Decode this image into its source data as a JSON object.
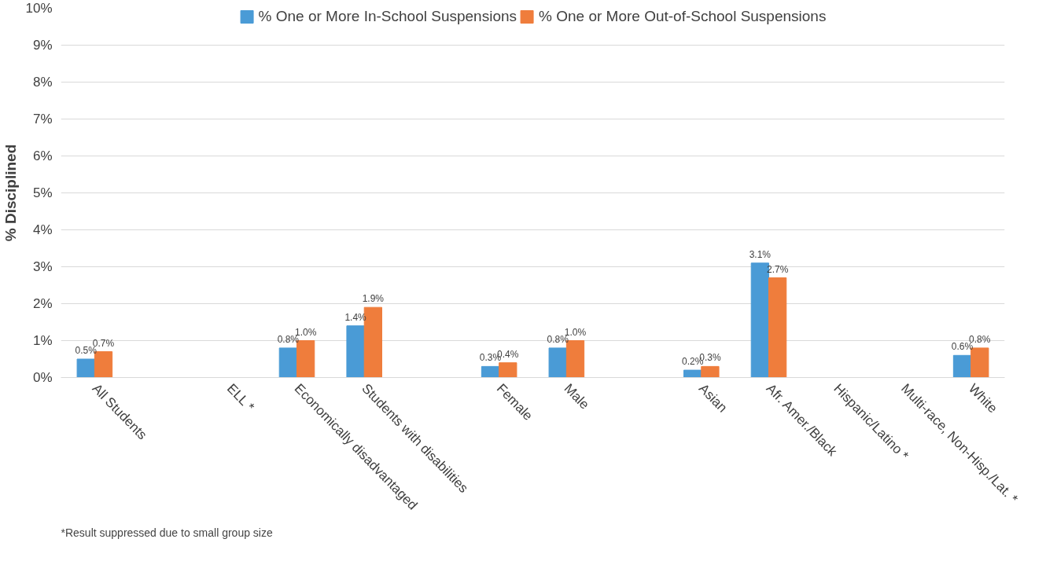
{
  "chart_data": {
    "type": "bar",
    "ylabel": "% Disciplined",
    "categories": [
      "All Students",
      null,
      "ELL *",
      "Economically disadvantaged",
      "Students with disabilities",
      null,
      "Female",
      "Male",
      null,
      "Asian",
      "Afr. Amer./Black",
      "Hispanic/Latino *",
      "Multi-race, Non-Hisp./Lat. *",
      "White"
    ],
    "series": [
      {
        "name": "% One or More In-School Suspensions",
        "color": "#4a9bd6",
        "values": [
          0.5,
          null,
          null,
          0.8,
          1.4,
          null,
          0.3,
          0.8,
          null,
          0.2,
          3.1,
          null,
          null,
          0.6
        ],
        "value_labels": [
          "0.5%",
          null,
          null,
          "0.8%",
          "1.4%",
          null,
          "0.3%",
          "0.8%",
          null,
          "0.2%",
          "3.1%",
          null,
          null,
          "0.6%"
        ]
      },
      {
        "name": "% One or More Out-of-School Suspensions",
        "color": "#ef7d3c",
        "values": [
          0.7,
          null,
          null,
          1.0,
          1.9,
          null,
          0.4,
          1.0,
          null,
          0.3,
          2.7,
          null,
          null,
          0.8
        ],
        "value_labels": [
          "0.7%",
          null,
          null,
          "1.0%",
          "1.9%",
          null,
          "0.4%",
          "1.0%",
          null,
          "0.3%",
          "2.7%",
          null,
          null,
          "0.8%"
        ]
      }
    ],
    "ylim": [
      0,
      10
    ],
    "yticks": [
      {
        "value": 0,
        "label": "0%"
      },
      {
        "value": 1,
        "label": "1%"
      },
      {
        "value": 2,
        "label": "2%"
      },
      {
        "value": 3,
        "label": "3%"
      },
      {
        "value": 4,
        "label": "4%"
      },
      {
        "value": 5,
        "label": "5%"
      },
      {
        "value": 6,
        "label": "6%"
      },
      {
        "value": 7,
        "label": "7%"
      },
      {
        "value": 8,
        "label": "8%"
      },
      {
        "value": 9,
        "label": "9%"
      },
      {
        "value": 10,
        "label": "10%"
      }
    ],
    "grid": "y",
    "legend": "top",
    "annotations": [
      "*Result suppressed due to small group size"
    ]
  }
}
